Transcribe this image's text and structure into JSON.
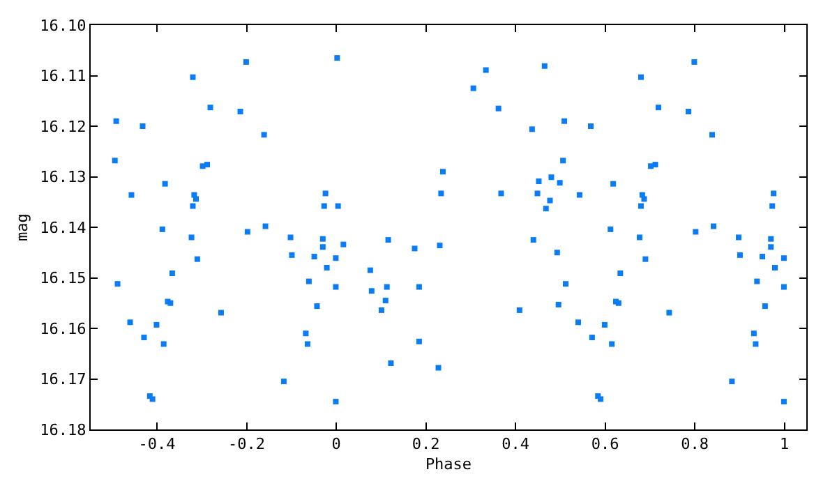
{
  "chart_data": {
    "type": "scatter",
    "xlabel": "Phase",
    "ylabel": "mag",
    "xlim": [
      -0.548,
      1.049
    ],
    "xticks": [
      -0.4,
      -0.2,
      0,
      0.2,
      0.4,
      0.6,
      0.8,
      1
    ],
    "ylim": [
      16.18,
      16.1
    ],
    "yticks": [
      {
        "value": 16.1,
        "label": "16.10"
      },
      16.11,
      16.12,
      16.13,
      16.14,
      16.15,
      16.16,
      16.17,
      16.18
    ],
    "grid": false,
    "marker": "square",
    "series": [
      {
        "color": "#0a7cf5",
        "x": [
          0.002,
          -0.201,
          -0.32,
          -0.281,
          -0.214,
          -0.491,
          -0.432,
          -0.161,
          -0.494,
          -0.298,
          -0.288,
          -0.382,
          -0.457,
          -0.317,
          -0.313,
          -0.024,
          -0.32,
          -0.027,
          0.004,
          -0.388,
          -0.158,
          -0.198,
          -0.323,
          -0.102,
          -0.03,
          0.016,
          -0.03,
          -0.31,
          -0.099,
          -0.049,
          -0.001,
          -0.021,
          -0.366,
          -0.488,
          -0.061,
          -0.001,
          -0.376,
          -0.37,
          -0.043,
          -0.257,
          -0.46,
          -0.401,
          -0.068,
          -0.429,
          -0.385,
          -0.064,
          -0.117,
          -0.416,
          -0.41,
          -0.001,
          0.306,
          0.334,
          0.362,
          0.465,
          0.437,
          0.238,
          0.234,
          0.368,
          0.452,
          0.48,
          0.499,
          0.449,
          0.477,
          0.468,
          0.116,
          0.175,
          0.231,
          0.44,
          0.493,
          0.076,
          0.079,
          0.113,
          0.185,
          0.11,
          0.101,
          0.409,
          0.496,
          0.185,
          0.122,
          0.228,
          0.799,
          0.68,
          0.719,
          0.786,
          0.509,
          0.568,
          0.839,
          0.506,
          0.702,
          0.712,
          0.618,
          0.543,
          0.683,
          0.687,
          0.976,
          0.68,
          0.973,
          0.612,
          0.842,
          0.802,
          0.677,
          0.898,
          0.97,
          0.97,
          0.69,
          0.901,
          0.951,
          0.999,
          0.979,
          0.634,
          0.512,
          0.939,
          0.999,
          0.624,
          0.63,
          0.957,
          0.743,
          0.54,
          0.599,
          0.932,
          0.571,
          0.615,
          0.936,
          0.883,
          0.584,
          0.59,
          0.999
        ],
        "values": [
          16.1065,
          16.1073,
          16.1103,
          16.1163,
          16.1171,
          16.119,
          16.12,
          16.1217,
          16.1268,
          16.1279,
          16.1276,
          16.1314,
          16.1336,
          16.1336,
          16.1344,
          16.1333,
          16.1358,
          16.1358,
          16.1358,
          16.1404,
          16.1398,
          16.1409,
          16.142,
          16.142,
          16.1423,
          16.1434,
          16.1439,
          16.1463,
          16.1455,
          16.1458,
          16.1461,
          16.148,
          16.1491,
          16.1512,
          16.1507,
          16.1518,
          16.1547,
          16.155,
          16.1556,
          16.1569,
          16.1588,
          16.1593,
          16.161,
          16.1618,
          16.1631,
          16.1631,
          16.1705,
          16.1734,
          16.174,
          16.1745,
          16.1125,
          16.1089,
          16.1165,
          16.1081,
          16.1206,
          16.129,
          16.1333,
          16.1333,
          16.1309,
          16.1301,
          16.1312,
          16.1333,
          16.1347,
          16.1363,
          16.1425,
          16.1442,
          16.1436,
          16.1425,
          16.145,
          16.1485,
          16.1526,
          16.1518,
          16.1518,
          16.1545,
          16.1564,
          16.1564,
          16.1553,
          16.1626,
          16.1669,
          16.1678,
          16.1073,
          16.1103,
          16.1163,
          16.1171,
          16.119,
          16.12,
          16.1217,
          16.1268,
          16.1279,
          16.1276,
          16.1314,
          16.1336,
          16.1336,
          16.1344,
          16.1333,
          16.1358,
          16.1358,
          16.1404,
          16.1398,
          16.1409,
          16.142,
          16.142,
          16.1423,
          16.1439,
          16.1463,
          16.1455,
          16.1458,
          16.1461,
          16.148,
          16.1491,
          16.1512,
          16.1507,
          16.1518,
          16.1547,
          16.155,
          16.1556,
          16.1569,
          16.1588,
          16.1593,
          16.161,
          16.1618,
          16.1631,
          16.1631,
          16.1705,
          16.1734,
          16.174,
          16.1745
        ]
      }
    ]
  }
}
